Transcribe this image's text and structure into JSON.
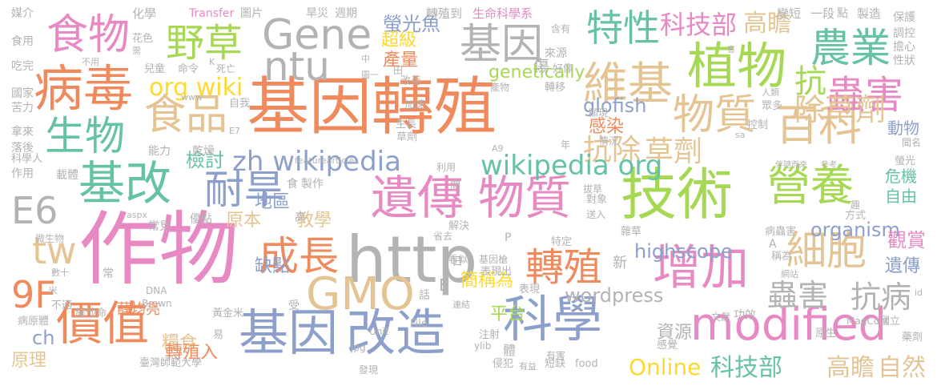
{
  "colors": {
    "orange": "#f08a5d",
    "pink": "#e78ac3",
    "green": "#a6d854",
    "gold": "#e5c494",
    "blue": "#8da0cb",
    "teal": "#66c2a5",
    "gray": "#b3b3b3",
    "yellow": "#ffd92f"
  },
  "words": [
    {
      "text": "基因轉殖",
      "color": "orange"
    },
    {
      "text": "作物",
      "color": "pink"
    },
    {
      "text": "技術",
      "color": "green"
    },
    {
      "text": "http",
      "color": "gray"
    },
    {
      "text": "遺傳",
      "color": "pink"
    },
    {
      "text": "物質",
      "color": "pink"
    },
    {
      "text": "基因",
      "color": "blue"
    },
    {
      "text": "改造",
      "color": "blue"
    },
    {
      "text": "科學",
      "color": "blue"
    },
    {
      "text": "病毒",
      "color": "orange"
    },
    {
      "text": "基改",
      "color": "teal"
    },
    {
      "text": "植物",
      "color": "green"
    },
    {
      "text": "增加",
      "color": "pink"
    },
    {
      "text": "價值",
      "color": "orange"
    },
    {
      "text": "營養",
      "color": "green"
    },
    {
      "text": "細胞",
      "color": "gold"
    },
    {
      "text": "百科",
      "color": "gold"
    },
    {
      "text": "Gene",
      "color": "gray"
    },
    {
      "text": "ntu",
      "color": "gray"
    },
    {
      "text": "基因",
      "color": "gray"
    },
    {
      "text": "GMO",
      "color": "gold"
    },
    {
      "text": "modified",
      "color": "pink"
    },
    {
      "text": "成長",
      "color": "orange"
    },
    {
      "text": "食品",
      "color": "gold"
    },
    {
      "text": "食物",
      "color": "pink"
    },
    {
      "text": "生物",
      "color": "teal"
    },
    {
      "text": "耐旱",
      "color": "blue"
    },
    {
      "text": "農業",
      "color": "teal"
    },
    {
      "text": "蟲害",
      "color": "pink"
    },
    {
      "text": "維基",
      "color": "gold"
    },
    {
      "text": "物質",
      "color": "gold"
    },
    {
      "text": "特性",
      "color": "teal"
    },
    {
      "text": "轉殖",
      "color": "orange"
    },
    {
      "text": "野草",
      "color": "green"
    },
    {
      "text": "tw",
      "color": "gold"
    },
    {
      "text": "9F",
      "color": "orange"
    },
    {
      "text": "E6",
      "color": "gray"
    },
    {
      "text": "蟲害",
      "color": "gray"
    },
    {
      "text": "抗病",
      "color": "gray"
    },
    {
      "text": "抗",
      "color": "green"
    },
    {
      "text": "除草劑",
      "color": "gold"
    },
    {
      "text": "抗除",
      "color": "gold"
    },
    {
      "text": "草劑",
      "color": "gold"
    },
    {
      "text": "zh wikipedia",
      "color": "blue"
    },
    {
      "text": "wikipedia org",
      "color": "teal"
    },
    {
      "text": "高瞻",
      "color": "gold"
    },
    {
      "text": "科技部",
      "color": "pink"
    },
    {
      "text": "org wiki",
      "color": "yellow"
    },
    {
      "text": "Online",
      "color": "yellow"
    },
    {
      "text": "科技部",
      "color": "teal"
    },
    {
      "text": "高瞻",
      "color": "gold"
    },
    {
      "text": "自然",
      "color": "gold"
    },
    {
      "text": "highscope",
      "color": "blue"
    },
    {
      "text": "organism",
      "color": "blue"
    },
    {
      "text": "glofish",
      "color": "blue"
    },
    {
      "text": "genetically",
      "color": "green"
    },
    {
      "text": "wordpress",
      "color": "gray"
    },
    {
      "text": "螢光魚",
      "color": "blue"
    },
    {
      "text": "檢討",
      "color": "teal"
    },
    {
      "text": "感染",
      "color": "orange"
    },
    {
      "text": "動物",
      "color": "blue"
    },
    {
      "text": "危機",
      "color": "teal"
    },
    {
      "text": "自由",
      "color": "teal"
    },
    {
      "text": "觀賞",
      "color": "pink"
    },
    {
      "text": "遺傳",
      "color": "blue"
    },
    {
      "text": "缺點",
      "color": "blue"
    },
    {
      "text": "地區",
      "color": "blue"
    },
    {
      "text": "教學",
      "color": "gold"
    },
    {
      "text": "原本",
      "color": "gold"
    },
    {
      "text": "平台",
      "color": "green"
    },
    {
      "text": "資源",
      "color": "gray"
    },
    {
      "text": "糧食",
      "color": "gold"
    },
    {
      "text": "轉殖入",
      "color": "orange"
    },
    {
      "text": "原理",
      "color": "gold"
    },
    {
      "text": "ch",
      "color": "blue"
    },
    {
      "text": "超級",
      "color": "yellow"
    },
    {
      "text": "產量",
      "color": "orange"
    },
    {
      "text": "簡稱為",
      "color": "yellow"
    },
    {
      "text": "傷",
      "color": "gray"
    },
    {
      "text": "來源",
      "color": "gray"
    },
    {
      "text": "薛均亮",
      "color": "orange"
    },
    {
      "text": "轉殖到",
      "color": "gray"
    },
    {
      "text": "生命科學系",
      "color": "pink"
    },
    {
      "text": "Transfer",
      "color": "pink"
    },
    {
      "text": "圖片",
      "color": "gray"
    },
    {
      "text": "化學",
      "color": "gray"
    },
    {
      "text": "旱災",
      "color": "gray"
    },
    {
      "text": "週期",
      "color": "gray"
    },
    {
      "text": "媒介",
      "color": "gray"
    },
    {
      "text": "變短",
      "color": "gray"
    },
    {
      "text": "一段",
      "color": "gray"
    },
    {
      "text": "點",
      "color": "gray"
    },
    {
      "text": "製造",
      "color": "gray"
    },
    {
      "text": "保護",
      "color": "gray"
    },
    {
      "text": "調控",
      "color": "gray"
    },
    {
      "text": "擔心",
      "color": "gray"
    },
    {
      "text": "性狀",
      "color": "gray"
    },
    {
      "text": "食用",
      "color": "gray"
    },
    {
      "text": "吃完",
      "color": "gray"
    },
    {
      "text": "國家",
      "color": "gray"
    },
    {
      "text": "苦力",
      "color": "gray"
    },
    {
      "text": "拿來",
      "color": "gray"
    },
    {
      "text": "落後",
      "color": "gray"
    },
    {
      "text": "科學人",
      "color": "gray"
    },
    {
      "text": "作用",
      "color": "gray"
    },
    {
      "text": "載體",
      "color": "gray"
    },
    {
      "text": "能力",
      "color": "gray"
    },
    {
      "text": "乾燥",
      "color": "gray"
    },
    {
      "text": "製作",
      "color": "gray"
    },
    {
      "text": "常見",
      "color": "gray"
    },
    {
      "text": "優點",
      "color": "gray"
    },
    {
      "text": "微生物",
      "color": "gray"
    },
    {
      "text": "數十",
      "color": "gray"
    },
    {
      "text": "不適",
      "color": "gray"
    },
    {
      "text": "病原體",
      "color": "gray"
    },
    {
      "text": "維他命",
      "color": "gray"
    },
    {
      "text": "臺灣師範大學",
      "color": "gray"
    },
    {
      "text": "黃金米",
      "color": "gray"
    },
    {
      "text": "易",
      "color": "gray"
    },
    {
      "text": "發現",
      "color": "gray"
    },
    {
      "text": "侵犯",
      "color": "gray"
    },
    {
      "text": "有益",
      "color": "gray"
    },
    {
      "text": "短缺",
      "color": "gray"
    },
    {
      "text": "food",
      "color": "gray"
    },
    {
      "text": "原生",
      "color": "gray"
    },
    {
      "text": "國立",
      "color": "gray"
    },
    {
      "text": "藥劑",
      "color": "gray"
    },
    {
      "text": "MagCont",
      "color": "gray"
    },
    {
      "text": "文獻",
      "color": "gray"
    },
    {
      "text": "功效",
      "color": "gray"
    },
    {
      "text": "網站",
      "color": "gray"
    },
    {
      "text": "感覺",
      "color": "gray"
    },
    {
      "text": "稱為",
      "color": "gray"
    },
    {
      "text": "病蟲害",
      "color": "gray"
    },
    {
      "text": "方式",
      "color": "gray"
    },
    {
      "text": "趣",
      "color": "gray"
    },
    {
      "text": "雜草",
      "color": "gray"
    },
    {
      "text": "送入",
      "color": "gray"
    },
    {
      "text": "特定",
      "color": "gray"
    },
    {
      "text": "看似",
      "color": "gray"
    },
    {
      "text": "基因槍",
      "color": "gray"
    },
    {
      "text": "省去",
      "color": "gray"
    },
    {
      "text": "解決",
      "color": "gray"
    },
    {
      "text": "對象",
      "color": "gray"
    },
    {
      "text": "拔草",
      "color": "gray"
    },
    {
      "text": "表現出",
      "color": "gray"
    },
    {
      "text": "表現",
      "color": "gray"
    },
    {
      "text": "連結",
      "color": "gray"
    },
    {
      "text": "注射",
      "color": "gray"
    },
    {
      "text": "有害",
      "color": "gray"
    },
    {
      "text": "ylib",
      "color": "gray"
    },
    {
      "text": "jpg",
      "color": "gray"
    },
    {
      "text": "Unit",
      "color": "gray"
    },
    {
      "text": "File",
      "color": "gray"
    },
    {
      "text": "DNA",
      "color": "gray"
    },
    {
      "text": "Brown",
      "color": "gray"
    },
    {
      "text": "改善",
      "color": "gray"
    },
    {
      "text": "加速",
      "color": "gray"
    },
    {
      "text": "生長",
      "color": "gray"
    },
    {
      "text": "轉移",
      "color": "gray"
    },
    {
      "text": "產物",
      "color": "gray"
    },
    {
      "text": "好像",
      "color": "gray"
    },
    {
      "text": "圖一",
      "color": "gray"
    },
    {
      "text": "兒童",
      "color": "gray"
    },
    {
      "text": "命令",
      "color": "gray"
    },
    {
      "text": "死亡",
      "color": "gray"
    },
    {
      "text": "不用",
      "color": "gray"
    },
    {
      "text": "花色",
      "color": "gray"
    },
    {
      "text": "需",
      "color": "gray"
    },
    {
      "text": "含有",
      "color": "gray"
    },
    {
      "text": "www",
      "color": "gray"
    },
    {
      "text": "自我",
      "color": "gray"
    },
    {
      "text": "情況",
      "color": "gray"
    },
    {
      "text": "利用",
      "color": "gray"
    },
    {
      "text": "控制",
      "color": "gray"
    },
    {
      "text": "眾多",
      "color": "gray"
    },
    {
      "text": "人類",
      "color": "gray"
    },
    {
      "text": "聞名",
      "color": "gray"
    },
    {
      "text": "螢光",
      "color": "gray"
    },
    {
      "text": "伴隨而來",
      "color": "gray"
    },
    {
      "text": "參考",
      "color": "gray"
    },
    {
      "text": "featurearticles",
      "color": "gray"
    },
    {
      "text": "aspx",
      "color": "gray"
    },
    {
      "text": "A9",
      "color": "gray"
    },
    {
      "text": "E7",
      "color": "gray"
    },
    {
      "text": "sa",
      "color": "gray"
    },
    {
      "text": "id",
      "color": "gray"
    },
    {
      "text": "K",
      "color": "gray"
    },
    {
      "text": "P",
      "color": "gray"
    },
    {
      "text": "E",
      "color": "gray"
    },
    {
      "text": "中",
      "color": "gray"
    },
    {
      "text": "田",
      "color": "gray"
    },
    {
      "text": "間",
      "color": "gray"
    },
    {
      "text": "食",
      "color": "gray"
    },
    {
      "text": "日",
      "color": "gray"
    },
    {
      "text": "話",
      "color": "gray"
    },
    {
      "text": "米",
      "color": "gray"
    },
    {
      "text": "常",
      "color": "gray"
    },
    {
      "text": "高",
      "color": "gray"
    },
    {
      "text": "新",
      "color": "gray"
    },
    {
      "text": "受",
      "color": "gray"
    },
    {
      "text": "年",
      "color": "gray"
    },
    {
      "text": "書",
      "color": "gray"
    },
    {
      "text": "草劑",
      "color": "gray"
    },
    {
      "text": "體",
      "color": "gray"
    },
    {
      "text": "A",
      "color": "gray"
    },
    {
      "text": "顯現",
      "color": "gray"
    }
  ]
}
